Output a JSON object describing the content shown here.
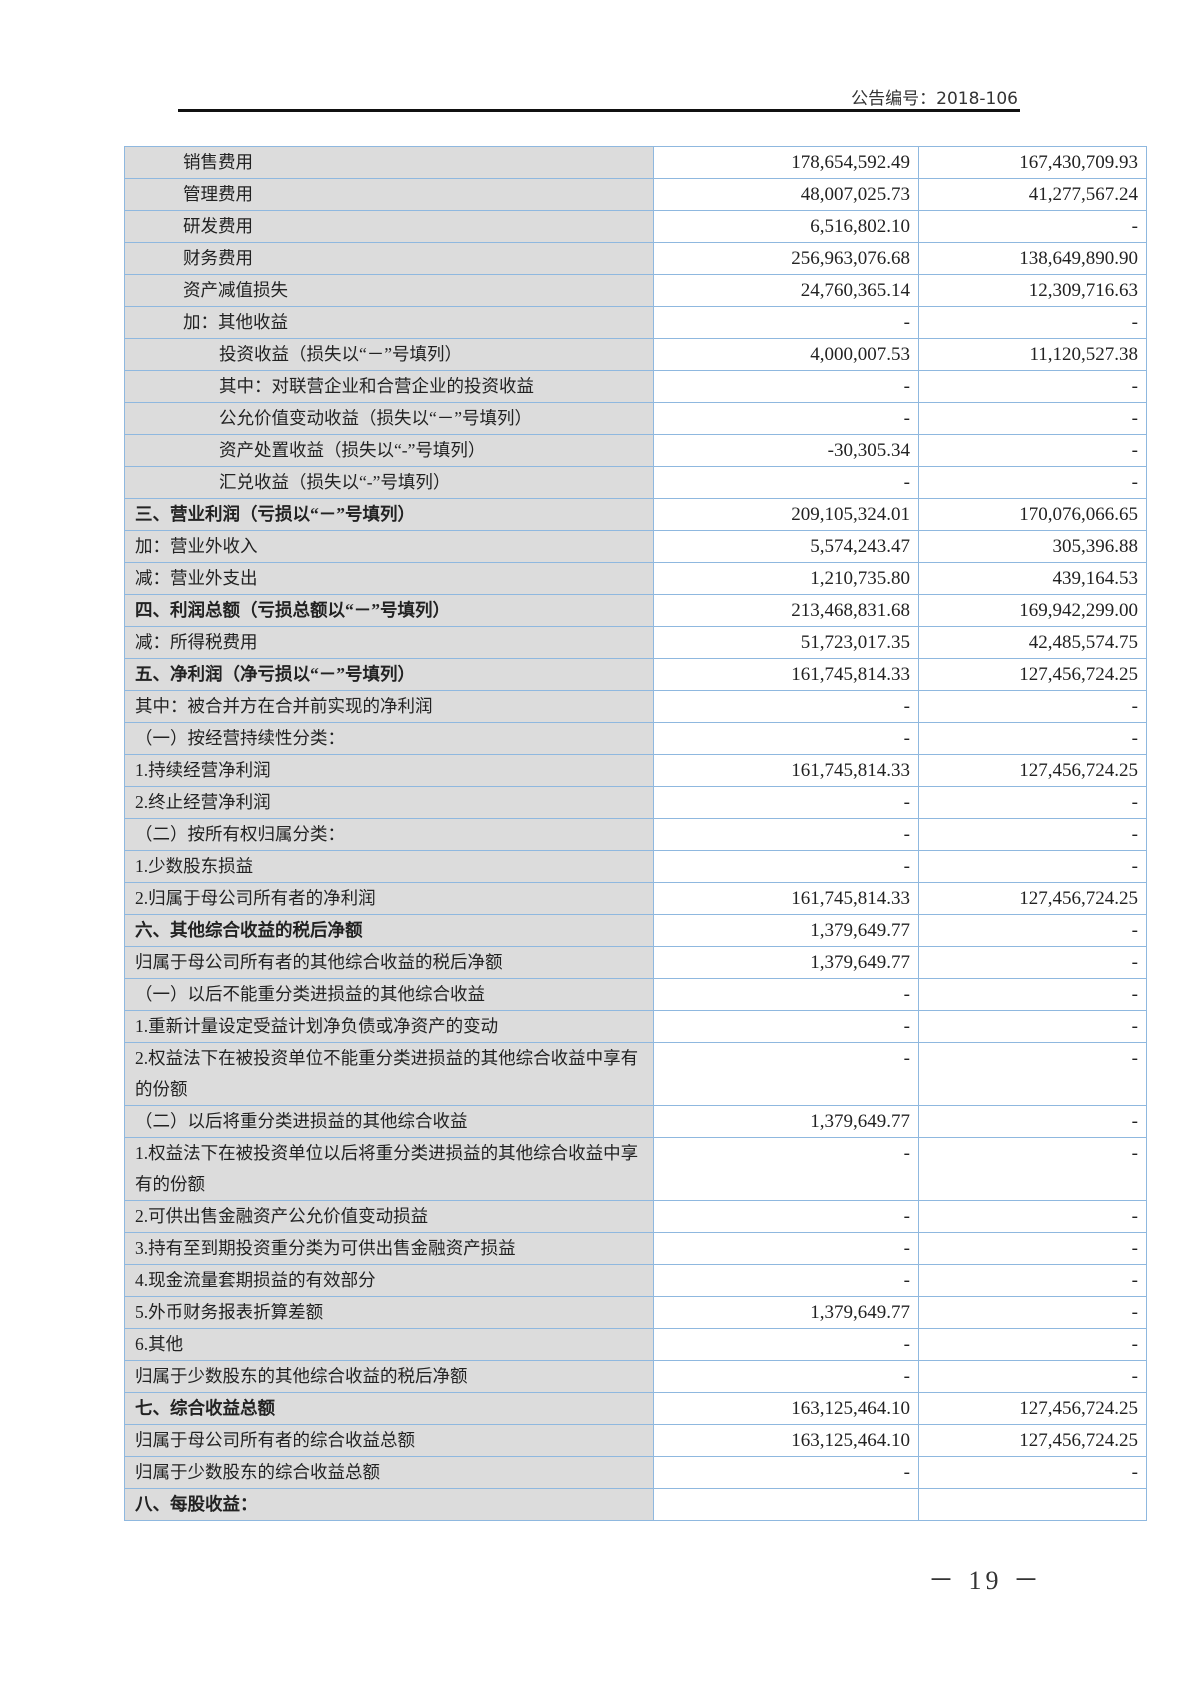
{
  "header": {
    "notice_number": "公告编号：2018-106"
  },
  "page_number": "－ 19 －",
  "table": {
    "rows": [
      {
        "label": "销售费用",
        "indent": 2,
        "v1": "178,654,592.49",
        "v2": "167,430,709.93"
      },
      {
        "label": "管理费用",
        "indent": 2,
        "v1": "48,007,025.73",
        "v2": "41,277,567.24"
      },
      {
        "label": "研发费用",
        "indent": 2,
        "v1": "6,516,802.10",
        "v2": "-"
      },
      {
        "label": "财务费用",
        "indent": 2,
        "v1": "256,963,076.68",
        "v2": "138,649,890.90"
      },
      {
        "label": "资产减值损失",
        "indent": 2,
        "v1": "24,760,365.14",
        "v2": "12,309,716.63"
      },
      {
        "label": "加：其他收益",
        "indent": 2,
        "v1": "-",
        "v2": "-"
      },
      {
        "label": "投资收益（损失以“－”号填列）",
        "indent": 3,
        "v1": "4,000,007.53",
        "v2": "11,120,527.38"
      },
      {
        "label": "其中：对联营企业和合营企业的投资收益",
        "indent": 3,
        "v1": "-",
        "v2": "-"
      },
      {
        "label": "公允价值变动收益（损失以“－”号填列）",
        "indent": 3,
        "v1": "-",
        "v2": "-"
      },
      {
        "label": "资产处置收益（损失以“-”号填列）",
        "indent": 3,
        "v1": "-30,305.34",
        "v2": "-"
      },
      {
        "label": "汇兑收益（损失以“-”号填列）",
        "indent": 3,
        "v1": "-",
        "v2": "-"
      },
      {
        "label": "三、营业利润（亏损以“－”号填列）",
        "indent": 0,
        "bold": true,
        "v1": "209,105,324.01",
        "v2": "170,076,066.65"
      },
      {
        "label": "加：营业外收入",
        "indent": 0,
        "v1": "5,574,243.47",
        "v2": "305,396.88"
      },
      {
        "label": "减：营业外支出",
        "indent": 0,
        "v1": "1,210,735.80",
        "v2": "439,164.53"
      },
      {
        "label": "四、利润总额（亏损总额以“－”号填列）",
        "indent": 0,
        "bold": true,
        "v1": "213,468,831.68",
        "v2": "169,942,299.00"
      },
      {
        "label": "减：所得税费用",
        "indent": 0,
        "v1": "51,723,017.35",
        "v2": "42,485,574.75"
      },
      {
        "label": "五、净利润（净亏损以“－”号填列）",
        "indent": 0,
        "bold": true,
        "v1": "161,745,814.33",
        "v2": "127,456,724.25"
      },
      {
        "label": "其中：被合并方在合并前实现的净利润",
        "indent": 0,
        "v1": "-",
        "v2": "-"
      },
      {
        "label": "（一）按经营持续性分类：",
        "indent": 0,
        "v1": "-",
        "v2": "-"
      },
      {
        "label": "1.持续经营净利润",
        "indent": 0,
        "v1": "161,745,814.33",
        "v2": "127,456,724.25"
      },
      {
        "label": "2.终止经营净利润",
        "indent": 0,
        "v1": "-",
        "v2": "-"
      },
      {
        "label": "（二）按所有权归属分类：",
        "indent": 0,
        "v1": "-",
        "v2": "-"
      },
      {
        "label": "1.少数股东损益",
        "indent": 0,
        "v1": "-",
        "v2": "-"
      },
      {
        "label": "2.归属于母公司所有者的净利润",
        "indent": 0,
        "v1": "161,745,814.33",
        "v2": "127,456,724.25"
      },
      {
        "label": "六、其他综合收益的税后净额",
        "indent": 0,
        "bold": true,
        "v1": "1,379,649.77",
        "v2": "-"
      },
      {
        "label": "归属于母公司所有者的其他综合收益的税后净额",
        "indent": 0,
        "v1": "1,379,649.77",
        "v2": "-"
      },
      {
        "label": "（一）以后不能重分类进损益的其他综合收益",
        "indent": 0,
        "v1": "-",
        "v2": "-"
      },
      {
        "label": "1.重新计量设定受益计划净负债或净资产的变动",
        "indent": 0,
        "v1": "-",
        "v2": "-"
      },
      {
        "label": "2.权益法下在被投资单位不能重分类进损益的其他综合收益中享有的份额",
        "indent": 0,
        "v1": "-",
        "v2": "-"
      },
      {
        "label": "（二）以后将重分类进损益的其他综合收益",
        "indent": 0,
        "v1": "1,379,649.77",
        "v2": "-"
      },
      {
        "label": "1.权益法下在被投资单位以后将重分类进损益的其他综合收益中享有的份额",
        "indent": 0,
        "v1": "-",
        "v2": "-"
      },
      {
        "label": "2.可供出售金融资产公允价值变动损益",
        "indent": 0,
        "v1": "-",
        "v2": "-"
      },
      {
        "label": "3.持有至到期投资重分类为可供出售金融资产损益",
        "indent": 0,
        "v1": "-",
        "v2": "-"
      },
      {
        "label": "4.现金流量套期损益的有效部分",
        "indent": 0,
        "v1": "-",
        "v2": "-"
      },
      {
        "label": "5.外币财务报表折算差额",
        "indent": 0,
        "v1": "1,379,649.77",
        "v2": "-"
      },
      {
        "label": "6.其他",
        "indent": 0,
        "v1": "-",
        "v2": "-"
      },
      {
        "label": "归属于少数股东的其他综合收益的税后净额",
        "indent": 0,
        "v1": "-",
        "v2": "-"
      },
      {
        "label": "七、综合收益总额",
        "indent": 0,
        "bold": true,
        "v1": "163,125,464.10",
        "v2": "127,456,724.25"
      },
      {
        "label": "归属于母公司所有者的综合收益总额",
        "indent": 0,
        "v1": "163,125,464.10",
        "v2": "127,456,724.25"
      },
      {
        "label": "归属于少数股东的综合收益总额",
        "indent": 0,
        "v1": "-",
        "v2": "-"
      },
      {
        "label": "八、每股收益：",
        "indent": 0,
        "bold": true,
        "v1": "",
        "v2": ""
      }
    ]
  }
}
